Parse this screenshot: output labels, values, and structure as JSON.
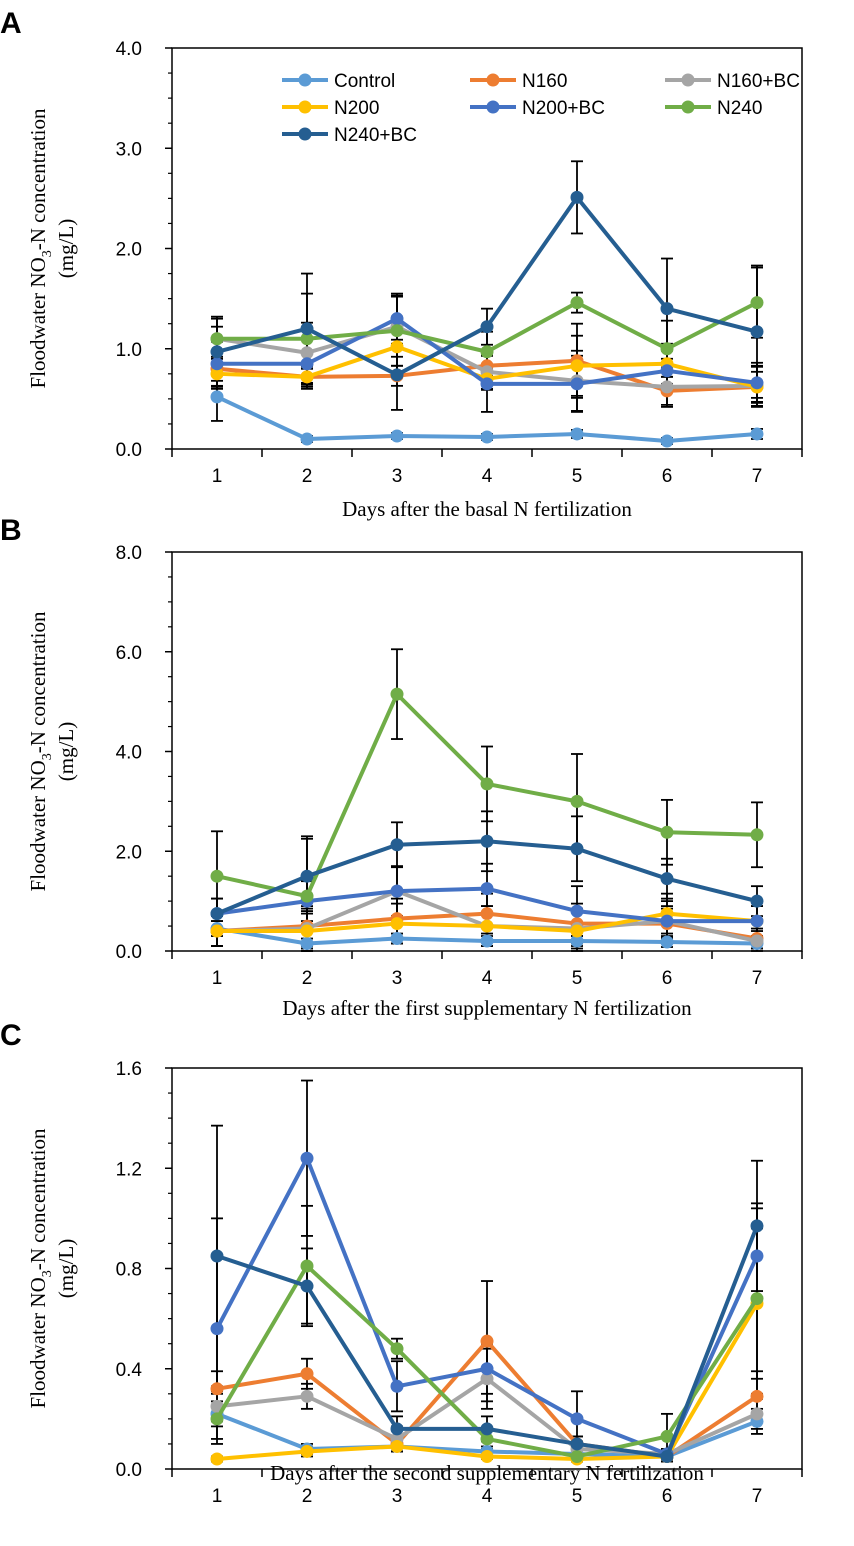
{
  "chart_data": [
    {
      "panel": "A",
      "type": "line",
      "xlabel": "Days after the basal N fertilization",
      "ylabel_main": "Floodwater NO",
      "ylabel_sub": "3",
      "ylabel_rest": "-N concentration",
      "ylabel_unit": "(mg/L)",
      "x": [
        1,
        2,
        3,
        4,
        5,
        6,
        7
      ],
      "ylim": [
        0,
        4
      ],
      "yticks": [
        "0.0",
        "1.0",
        "2.0",
        "3.0",
        "4.0"
      ],
      "ytick_values": [
        0,
        1,
        2,
        3,
        4
      ],
      "series": [
        {
          "name": "Control",
          "values": [
            0.52,
            0.1,
            0.13,
            0.12,
            0.15,
            0.08,
            0.15
          ],
          "err": [
            0.24,
            0.03,
            0.03,
            0.03,
            0.04,
            0.03,
            0.05
          ]
        },
        {
          "name": "N160",
          "values": [
            0.8,
            0.72,
            0.73,
            0.83,
            0.88,
            0.58,
            0.62
          ],
          "err": [
            0.12,
            0.08,
            0.1,
            0.1,
            0.37,
            0.14,
            0.15
          ]
        },
        {
          "name": "N160+BC",
          "values": [
            1.1,
            0.96,
            1.22,
            0.77,
            0.68,
            0.62,
            0.63
          ],
          "err": [
            0.12,
            0.3,
            0.3,
            0.18,
            0.3,
            0.2,
            0.2
          ]
        },
        {
          "name": "N200",
          "values": [
            0.75,
            0.72,
            1.02,
            0.7,
            0.83,
            0.85,
            0.62
          ],
          "err": [
            0.15,
            0.1,
            0.3,
            0.1,
            0.3,
            0.2,
            0.2
          ]
        },
        {
          "name": "N200+BC",
          "values": [
            0.85,
            0.85,
            1.3,
            0.65,
            0.65,
            0.78,
            0.66
          ],
          "err": [
            0.22,
            0.25,
            0.25,
            0.28,
            0.28,
            0.2,
            0.2
          ]
        },
        {
          "name": "N240",
          "values": [
            1.1,
            1.1,
            1.18,
            0.97,
            1.46,
            1.0,
            1.46
          ],
          "err": [
            0.2,
            0.45,
            0.35,
            0.2,
            0.1,
            0.28,
            0.35
          ]
        },
        {
          "name": "N240+BC",
          "values": [
            0.97,
            1.2,
            0.74,
            1.22,
            2.51,
            1.4,
            1.17
          ],
          "err": [
            0.35,
            0.55,
            0.35,
            0.18,
            0.36,
            0.5,
            0.66
          ]
        }
      ]
    },
    {
      "panel": "B",
      "type": "line",
      "xlabel": "Days after the first supplementary N fertilization",
      "ylabel_main": "Floodwater NO",
      "ylabel_sub": "3",
      "ylabel_rest": "-N concentration",
      "ylabel_unit": "(mg/L)",
      "x": [
        1,
        2,
        3,
        4,
        5,
        6,
        7
      ],
      "ylim": [
        0,
        8
      ],
      "yticks": [
        "0.0",
        "2.0",
        "4.0",
        "6.0",
        "8.0"
      ],
      "ytick_values": [
        0,
        2,
        4,
        6,
        8
      ],
      "series": [
        {
          "name": "Control",
          "values": [
            0.45,
            0.15,
            0.25,
            0.2,
            0.2,
            0.18,
            0.15
          ],
          "err": [
            0.15,
            0.1,
            0.1,
            0.1,
            0.1,
            0.1,
            0.1
          ]
        },
        {
          "name": "N160",
          "values": [
            0.4,
            0.5,
            0.65,
            0.75,
            0.55,
            0.55,
            0.25
          ],
          "err": [
            0.3,
            0.4,
            0.4,
            0.4,
            0.4,
            0.3,
            0.2
          ]
        },
        {
          "name": "N160+BC",
          "values": [
            0.4,
            0.45,
            1.2,
            0.5,
            0.45,
            0.6,
            0.2
          ],
          "err": [
            0.3,
            0.4,
            0.5,
            0.4,
            0.4,
            0.4,
            0.2
          ]
        },
        {
          "name": "N200",
          "values": [
            0.4,
            0.4,
            0.55,
            0.5,
            0.4,
            0.75,
            0.6
          ],
          "err": [
            0.3,
            0.4,
            0.4,
            0.4,
            0.4,
            0.4,
            0.3
          ]
        },
        {
          "name": "N200+BC",
          "values": [
            0.75,
            1.0,
            1.2,
            1.25,
            0.8,
            0.6,
            0.6
          ],
          "err": [
            0.3,
            0.4,
            0.5,
            0.5,
            0.5,
            0.3,
            0.3
          ]
        },
        {
          "name": "N240",
          "values": [
            1.5,
            1.1,
            5.15,
            3.35,
            3.0,
            2.38,
            2.33
          ],
          "err": [
            0.9,
            1.2,
            0.9,
            0.75,
            0.95,
            0.65,
            0.65
          ]
        },
        {
          "name": "N240+BC",
          "values": [
            0.75,
            1.5,
            2.13,
            2.2,
            2.05,
            1.45,
            1.0
          ],
          "err": [
            0.3,
            0.75,
            0.45,
            0.6,
            0.65,
            0.4,
            0.3
          ]
        }
      ]
    },
    {
      "panel": "C",
      "type": "line",
      "xlabel": "Days after the second supplementary N fertilization",
      "ylabel_main": "Floodwater NO",
      "ylabel_sub": "3",
      "ylabel_rest": "-N concentration",
      "ylabel_unit": "(mg/L)",
      "x": [
        1,
        2,
        3,
        4,
        5,
        6,
        7
      ],
      "ylim": [
        0,
        1.6
      ],
      "yticks": [
        "0.0",
        "0.4",
        "0.8",
        "1.2",
        "1.6"
      ],
      "ytick_values": [
        0,
        0.4,
        0.8,
        1.2,
        1.6
      ],
      "series": [
        {
          "name": "Control",
          "values": [
            0.22,
            0.08,
            0.09,
            0.07,
            0.06,
            0.05,
            0.19
          ],
          "err": [
            0.05,
            0.02,
            0.02,
            0.02,
            0.02,
            0.02,
            0.05
          ]
        },
        {
          "name": "N160",
          "values": [
            0.32,
            0.38,
            0.1,
            0.51,
            0.1,
            0.05,
            0.29
          ],
          "err": [
            0.07,
            0.06,
            0.03,
            0.24,
            0.03,
            0.02,
            0.1
          ]
        },
        {
          "name": "N160+BC",
          "values": [
            0.25,
            0.29,
            0.12,
            0.36,
            0.08,
            0.06,
            0.22
          ],
          "err": [
            0.06,
            0.05,
            0.05,
            0.12,
            0.03,
            0.02,
            0.06
          ]
        },
        {
          "name": "N200",
          "values": [
            0.04,
            0.07,
            0.09,
            0.05,
            0.04,
            0.05,
            0.66
          ],
          "err": [
            0.01,
            0.02,
            0.02,
            0.01,
            0.01,
            0.02,
            0.3
          ]
        },
        {
          "name": "N200+BC",
          "values": [
            0.56,
            1.24,
            0.33,
            0.4,
            0.2,
            0.06,
            0.85
          ],
          "err": [
            0.44,
            0.31,
            0.1,
            0.1,
            0.11,
            0.02,
            0.19
          ]
        },
        {
          "name": "N240",
          "values": [
            0.2,
            0.81,
            0.48,
            0.12,
            0.05,
            0.13,
            0.68
          ],
          "err": [
            0.1,
            0.24,
            0.04,
            0.04,
            0.02,
            0.09,
            0.38
          ]
        },
        {
          "name": "N240+BC",
          "values": [
            0.85,
            0.73,
            0.16,
            0.16,
            0.1,
            0.05,
            0.97
          ],
          "err": [
            0.52,
            0.15,
            0.05,
            0.05,
            0.03,
            0.02,
            0.26
          ]
        }
      ]
    }
  ],
  "colors": {
    "Control": "#5b9bd5",
    "N160": "#ed7d31",
    "N160+BC": "#a5a5a5",
    "N200": "#ffc000",
    "N200+BC": "#4472c4",
    "N240": "#70ad47",
    "N240+BC": "#255e91",
    "errorbar": "#000000"
  },
  "legend": [
    "Control",
    "N160",
    "N160+BC",
    "N200",
    "N200+BC",
    "N240",
    "N240+BC"
  ]
}
